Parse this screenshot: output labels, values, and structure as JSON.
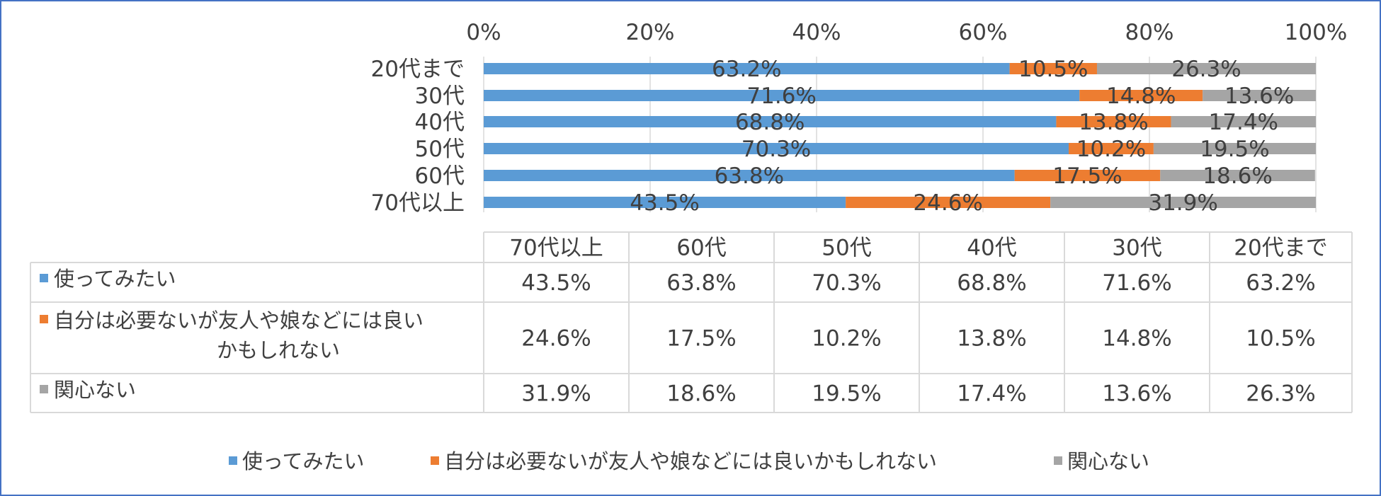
{
  "chart_data": {
    "type": "bar",
    "stacked": true,
    "percent": true,
    "orientation": "horizontal",
    "categories": [
      "20代まで",
      "30代",
      "40代",
      "50代",
      "60代",
      "70代以上"
    ],
    "series": [
      {
        "name": "使ってみたい",
        "color": "#5b9bd5",
        "values": [
          63.2,
          71.6,
          68.8,
          70.3,
          63.8,
          43.5
        ]
      },
      {
        "name": "自分は必要ないが友人や娘などには良いかもしれない",
        "color": "#ed7d31",
        "values": [
          10.5,
          14.8,
          13.8,
          10.2,
          17.5,
          24.6
        ]
      },
      {
        "name": "関心ない",
        "color": "#a5a5a5",
        "values": [
          26.3,
          13.6,
          17.4,
          19.5,
          18.6,
          31.9
        ]
      }
    ],
    "xlim": [
      0,
      100
    ],
    "x_ticks": [
      "0%",
      "20%",
      "40%",
      "60%",
      "80%",
      "100%"
    ],
    "axis_position": "top",
    "grid": true,
    "data_labels": true,
    "data_table": {
      "columns": [
        "70代以上",
        "60代",
        "50代",
        "40代",
        "30代",
        "20代まで"
      ],
      "rows": [
        {
          "label": "使ってみたい",
          "label_lines": [
            "使ってみたい"
          ],
          "values": [
            "43.5%",
            "63.8%",
            "70.3%",
            "68.8%",
            "71.6%",
            "63.2%"
          ]
        },
        {
          "label": "自分は必要ないが友人や娘などには良いかもしれない",
          "label_lines": [
            "自分は必要ないが友人や娘などには良い",
            "かもしれない"
          ],
          "values": [
            "24.6%",
            "17.5%",
            "10.2%",
            "13.8%",
            "14.8%",
            "10.5%"
          ]
        },
        {
          "label": "関心ない",
          "label_lines": [
            "関心ない"
          ],
          "values": [
            "31.9%",
            "18.6%",
            "19.5%",
            "17.4%",
            "13.6%",
            "26.3%"
          ]
        }
      ]
    },
    "legend": {
      "position": "bottom",
      "entries": [
        "使ってみたい",
        "自分は必要ないが友人や娘などには良いかもしれない",
        "関心ない"
      ]
    }
  }
}
